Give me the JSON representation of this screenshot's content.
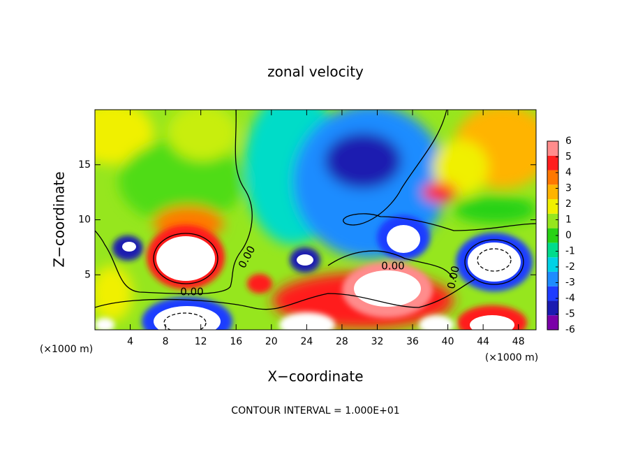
{
  "chart_data": {
    "type": "contour",
    "title": "zonal velocity",
    "x_label": "X−coordinate",
    "y_label": "Z−coordinate",
    "x_unit_labels": [
      "(×1000 m)",
      "(×1000 m)"
    ],
    "footer": "CONTOUR INTERVAL = 1.000E+01",
    "contour_labels": [
      "0.00",
      "0.00",
      "0.00",
      "0.00"
    ],
    "xlim": [
      0,
      50
    ],
    "xticks": [
      4,
      8,
      12,
      16,
      20,
      24,
      28,
      32,
      36,
      40,
      44,
      48
    ],
    "ylim": [
      0,
      20
    ],
    "yticks": [
      5,
      10,
      15
    ],
    "colorbar": {
      "lim": [
        -6,
        6
      ],
      "ticks": [
        -6,
        -5,
        -4,
        -3,
        -2,
        -1,
        0,
        1,
        2,
        3,
        4,
        5,
        6
      ],
      "colors": [
        "#7a00a8",
        "#1a1ab0",
        "#1e3cff",
        "#1e8cff",
        "#00d2e6",
        "#00dc8c",
        "#28d214",
        "#96e61e",
        "#f0f000",
        "#ffb400",
        "#ff7800",
        "#ff1e1e",
        "#ff8c8c"
      ]
    }
  }
}
